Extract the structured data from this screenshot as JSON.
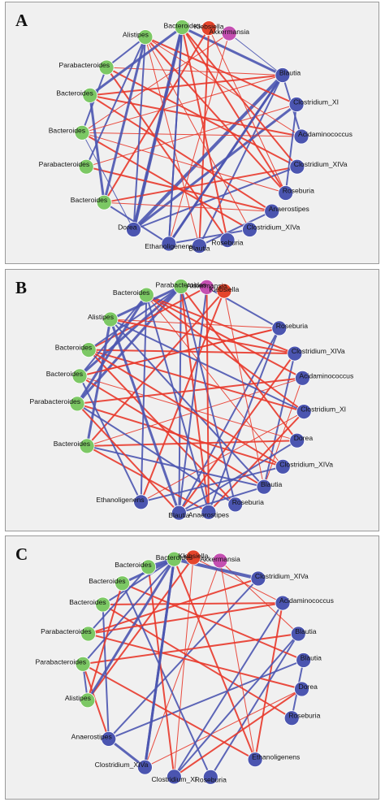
{
  "colors": {
    "positive": "#e8392b",
    "negative": "#4b55b0",
    "bacteroidetes": "#7cc864",
    "proteobacteria": "#e5452c",
    "verrucomicrobia": "#c44fb1",
    "firmicutes": "#4b55b0",
    "panel_bg": "#f0f0f0"
  },
  "panels": [
    {
      "letter": "A",
      "nodes": [
        {
          "name": "Bacteroides",
          "group": "bacteroidetes"
        },
        {
          "name": "Klebsiella",
          "group": "proteobacteria"
        },
        {
          "name": "Akkermansia",
          "group": "verrucomicrobia"
        },
        {
          "name": "Blautia",
          "group": "firmicutes"
        },
        {
          "name": "Clostridium_XI",
          "group": "firmicutes"
        },
        {
          "name": "Acidaminococcus",
          "group": "firmicutes"
        },
        {
          "name": "Clostridium_XIVa",
          "group": "firmicutes"
        },
        {
          "name": "Roseburia",
          "group": "firmicutes"
        },
        {
          "name": "Anaerostipes",
          "group": "firmicutes"
        },
        {
          "name": "Clostridium_XIVa",
          "group": "firmicutes"
        },
        {
          "name": "Roseburia",
          "group": "firmicutes"
        },
        {
          "name": "Blautia",
          "group": "firmicutes"
        },
        {
          "name": "Ethanoligenens",
          "group": "firmicutes"
        },
        {
          "name": "Dorea",
          "group": "firmicutes"
        },
        {
          "name": "Bacteroides",
          "group": "bacteroidetes"
        },
        {
          "name": "Parabacteroides",
          "group": "bacteroidetes"
        },
        {
          "name": "Bacteroides",
          "group": "bacteroidetes"
        },
        {
          "name": "Bacteroides",
          "group": "bacteroidetes"
        },
        {
          "name": "Parabacteroides",
          "group": "bacteroidetes"
        },
        {
          "name": "Alistipes",
          "group": "bacteroidetes"
        }
      ]
    },
    {
      "letter": "B",
      "nodes": [
        {
          "name": "Parabacteroides",
          "group": "bacteroidetes"
        },
        {
          "name": "Akkermansia",
          "group": "verrucomicrobia"
        },
        {
          "name": "Klebsiella",
          "group": "proteobacteria"
        },
        {
          "name": "Roseburia",
          "group": "firmicutes"
        },
        {
          "name": "Clostridium_XIVa",
          "group": "firmicutes"
        },
        {
          "name": "Acidaminococcus",
          "group": "firmicutes"
        },
        {
          "name": "Clostridium_XI",
          "group": "firmicutes"
        },
        {
          "name": "Dorea",
          "group": "firmicutes"
        },
        {
          "name": "Clostridium_XIVa",
          "group": "firmicutes"
        },
        {
          "name": "Blautia",
          "group": "firmicutes"
        },
        {
          "name": "Roseburia",
          "group": "firmicutes"
        },
        {
          "name": "Anaerostipes",
          "group": "firmicutes"
        },
        {
          "name": "Blautia",
          "group": "firmicutes"
        },
        {
          "name": "Ethanoligenens",
          "group": "firmicutes"
        },
        {
          "name": "Bacteroides",
          "group": "bacteroidetes"
        },
        {
          "name": "Parabacteroides",
          "group": "bacteroidetes"
        },
        {
          "name": "Bacteroides",
          "group": "bacteroidetes"
        },
        {
          "name": "Bacteroides",
          "group": "bacteroidetes"
        },
        {
          "name": "Alistipes",
          "group": "bacteroidetes"
        },
        {
          "name": "Bacteroides",
          "group": "bacteroidetes"
        }
      ]
    },
    {
      "letter": "C",
      "nodes": [
        {
          "name": "Klebsiella",
          "group": "proteobacteria"
        },
        {
          "name": "Akkermansia",
          "group": "verrucomicrobia"
        },
        {
          "name": "Clostridium_XIVa",
          "group": "firmicutes"
        },
        {
          "name": "Acidaminococcus",
          "group": "firmicutes"
        },
        {
          "name": "Blautia",
          "group": "firmicutes"
        },
        {
          "name": "Blautia",
          "group": "firmicutes"
        },
        {
          "name": "Dorea",
          "group": "firmicutes"
        },
        {
          "name": "Roseburia",
          "group": "firmicutes"
        },
        {
          "name": "Ethanoligenens",
          "group": "firmicutes"
        },
        {
          "name": "Roseburia",
          "group": "firmicutes"
        },
        {
          "name": "Clostridium_XI",
          "group": "firmicutes"
        },
        {
          "name": "Clostridium_XIVa",
          "group": "firmicutes"
        },
        {
          "name": "Anaerostipes",
          "group": "firmicutes"
        },
        {
          "name": "Alistipes",
          "group": "bacteroidetes"
        },
        {
          "name": "Parabacteroides",
          "group": "bacteroidetes"
        },
        {
          "name": "Parabacteroides",
          "group": "bacteroidetes"
        },
        {
          "name": "Bacteroides",
          "group": "bacteroidetes"
        },
        {
          "name": "Bacteroides",
          "group": "bacteroidetes"
        },
        {
          "name": "Bacteroides",
          "group": "bacteroidetes"
        },
        {
          "name": "Bacteroides",
          "group": "bacteroidetes"
        }
      ]
    }
  ]
}
